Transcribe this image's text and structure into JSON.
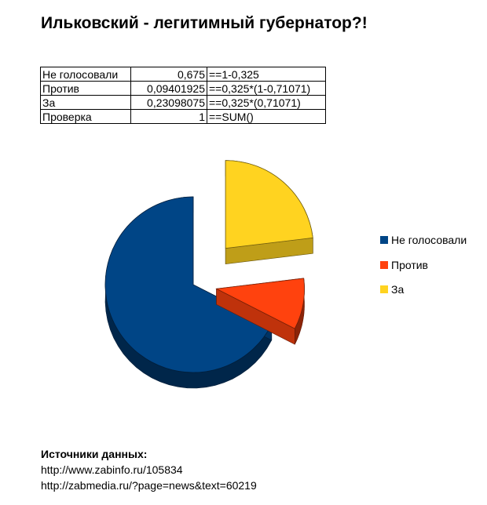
{
  "title": "Ильковский - легитимный губернатор?!",
  "table": {
    "rows": [
      {
        "label": "Не голосовали",
        "value": "0,675",
        "formula": "==1-0,325"
      },
      {
        "label": "Против",
        "value": "0,09401925",
        "formula": "==0,325*(1-0,71071)"
      },
      {
        "label": "За",
        "value": "0,23098075",
        "formula": "==0,325*(0,71071)"
      },
      {
        "label": "Проверка",
        "value": "1",
        "formula": "==SUM()"
      }
    ]
  },
  "chart_data": {
    "type": "pie",
    "style": "3d-exploded",
    "categories": [
      "Не голосовали",
      "Против",
      "За"
    ],
    "values": [
      0.675,
      0.09401925,
      0.23098075
    ],
    "colors": [
      "#004586",
      "#ff420e",
      "#ffd320"
    ],
    "legend_position": "right"
  },
  "sources": {
    "title": "Источники данных:",
    "links": [
      "http://www.zabinfo.ru/105834",
      "http://zabmedia.ru/?page=news&text=60219"
    ]
  }
}
